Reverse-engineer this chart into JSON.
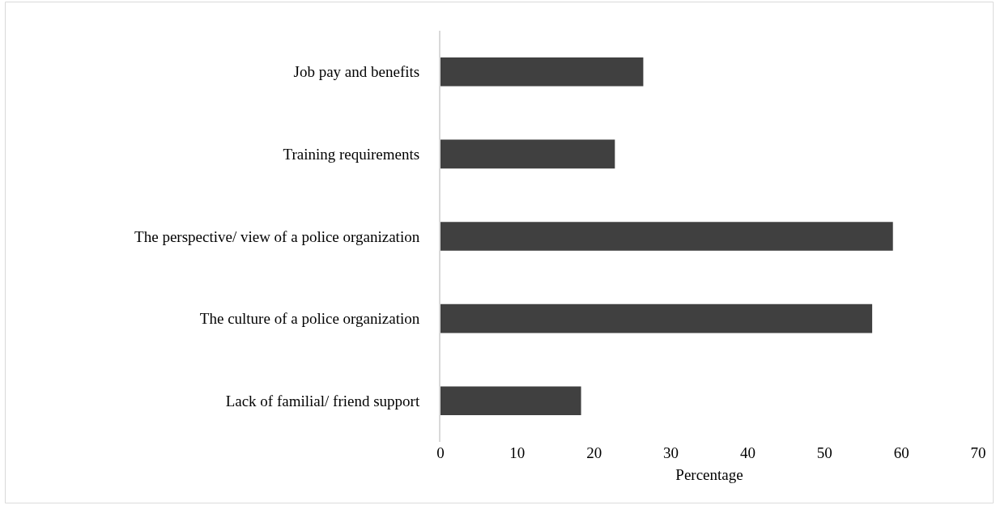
{
  "chart_data": {
    "type": "bar",
    "orientation": "horizontal",
    "xlabel": "Percentage",
    "categories": [
      "Job pay and benefits",
      "Training requirements",
      "The perspective/ view of a police organization",
      "The culture of a police organization",
      "Lack of familial/ friend support"
    ],
    "values": [
      26.4,
      22.7,
      58.9,
      56.2,
      18.3
    ],
    "color": "#404040",
    "xlim": [
      0,
      70
    ],
    "xticks": [
      0,
      10,
      20,
      30,
      40,
      50,
      60,
      70
    ]
  }
}
